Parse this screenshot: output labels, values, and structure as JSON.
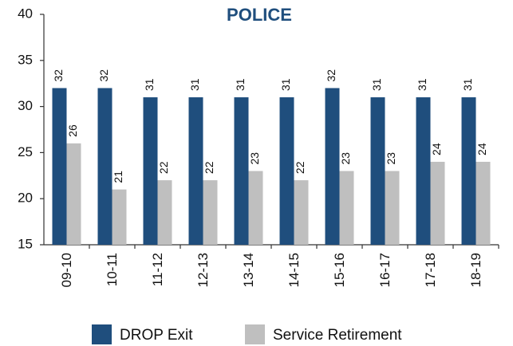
{
  "chart_data": {
    "type": "bar",
    "title": "POLICE",
    "categories": [
      "09-10",
      "10-11",
      "11-12",
      "12-13",
      "13-14",
      "14-15",
      "15-16",
      "16-17",
      "17-18",
      "18-19"
    ],
    "series": [
      {
        "name": "DROP Exit",
        "color": "#1f4e7d",
        "values": [
          32,
          32,
          31,
          31,
          31,
          31,
          32,
          31,
          31,
          31
        ]
      },
      {
        "name": "Service Retirement",
        "color": "#bfbfbf",
        "values": [
          26,
          21,
          22,
          22,
          23,
          22,
          23,
          23,
          24,
          24
        ]
      }
    ],
    "ylim": [
      15,
      40
    ],
    "yticks": [
      15,
      20,
      25,
      30,
      35,
      40
    ],
    "grid": false,
    "legend": "bottom"
  }
}
